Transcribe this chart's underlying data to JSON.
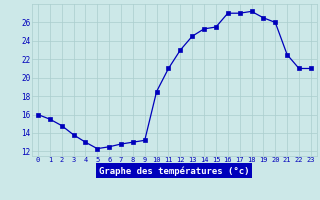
{
  "hours": [
    0,
    1,
    2,
    3,
    4,
    5,
    6,
    7,
    8,
    9,
    10,
    11,
    12,
    13,
    14,
    15,
    16,
    17,
    18,
    19,
    20,
    21,
    22,
    23
  ],
  "temperatures": [
    16.0,
    15.5,
    14.8,
    13.8,
    13.0,
    12.3,
    12.5,
    12.8,
    13.0,
    13.2,
    18.5,
    21.0,
    23.0,
    24.5,
    25.3,
    25.5,
    27.0,
    27.0,
    27.2,
    26.5,
    26.0,
    22.5,
    21.0,
    21.0
  ],
  "xlabel": "Graphe des températures (°c)",
  "ylim": [
    11.5,
    28.0
  ],
  "yticks": [
    12,
    14,
    16,
    18,
    20,
    22,
    24,
    26
  ],
  "bg_color": "#cce8e8",
  "line_color": "#0000bb",
  "marker_color": "#0000bb",
  "grid_color": "#aacece",
  "tick_label_color": "#0000bb",
  "xlabel_bg": "#0000bb",
  "xlabel_fg": "#ffffff",
  "tick_fontsize": 5.0,
  "xlabel_fontsize": 6.5
}
